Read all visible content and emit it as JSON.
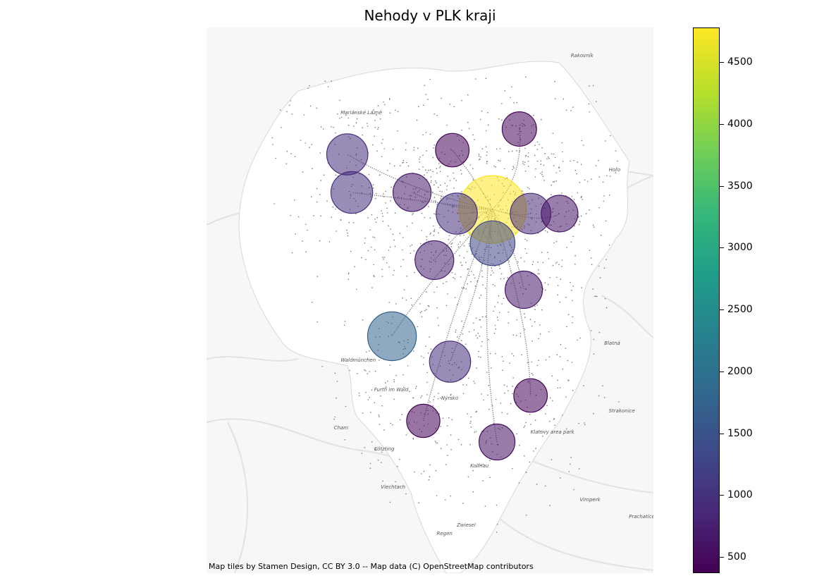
{
  "title": "Nehody v PLK kraji",
  "attribution": "Map tiles by Stamen Design, CC BY 3.0 -- Map data (C) OpenStreetMap contributors",
  "colorbar": {
    "min": 370,
    "max": 4780,
    "ticks": [
      {
        "value": 500,
        "label": "500"
      },
      {
        "value": 1000,
        "label": "1000"
      },
      {
        "value": 1500,
        "label": "1500"
      },
      {
        "value": 2000,
        "label": "2000"
      },
      {
        "value": 2500,
        "label": "2500"
      },
      {
        "value": 3000,
        "label": "3000"
      },
      {
        "value": 3500,
        "label": "3500"
      },
      {
        "value": 4000,
        "label": "4000"
      },
      {
        "value": 4500,
        "label": "4500"
      }
    ],
    "colormap": "viridis"
  },
  "basemap_labels": [
    {
      "text": "Mariánské Lázně",
      "lon": 12.7,
      "lat": 49.965
    },
    {
      "text": "Rakovník",
      "lon": 13.73,
      "lat": 50.1
    },
    {
      "text": "Hořo",
      "lon": 13.9,
      "lat": 49.83
    },
    {
      "text": "Waldmünchen",
      "lon": 12.7,
      "lat": 49.38
    },
    {
      "text": "Furth im Wald",
      "lon": 12.85,
      "lat": 49.31
    },
    {
      "text": "Cham",
      "lon": 12.67,
      "lat": 49.22
    },
    {
      "text": "Kötzting",
      "lon": 12.85,
      "lat": 49.17
    },
    {
      "text": "Viechtach",
      "lon": 12.88,
      "lat": 49.08
    },
    {
      "text": "Zwiesel",
      "lon": 13.22,
      "lat": 48.99
    },
    {
      "text": "Regen",
      "lon": 13.13,
      "lat": 48.97
    },
    {
      "text": "Klatovy area park",
      "lon": 13.55,
      "lat": 49.21
    },
    {
      "text": "Blatná",
      "lon": 13.88,
      "lat": 49.42
    },
    {
      "text": "Strakonice",
      "lon": 13.9,
      "lat": 49.26
    },
    {
      "text": "Vimperk",
      "lon": 13.77,
      "lat": 49.05
    },
    {
      "text": "Prachatice",
      "lon": 13.99,
      "lat": 49.01
    },
    {
      "text": "Kolfnau",
      "lon": 13.28,
      "lat": 49.13
    },
    {
      "text": "Nýrsko",
      "lon": 13.15,
      "lat": 49.29
    }
  ],
  "chart_data": {
    "type": "bubble-map",
    "title": "Nehody v PLK kraji",
    "color_scale": {
      "min": 370,
      "max": 4780,
      "cmap": "viridis"
    },
    "points": [
      {
        "lon": 13.38,
        "lat": 49.74,
        "value": 4780
      },
      {
        "lon": 12.93,
        "lat": 49.44,
        "value": 1750
      },
      {
        "lon": 13.38,
        "lat": 49.66,
        "value": 1300
      },
      {
        "lon": 12.75,
        "lat": 49.78,
        "value": 1000
      },
      {
        "lon": 12.73,
        "lat": 49.87,
        "value": 950
      },
      {
        "lon": 13.22,
        "lat": 49.73,
        "value": 950
      },
      {
        "lon": 13.55,
        "lat": 49.73,
        "value": 900
      },
      {
        "lon": 13.19,
        "lat": 49.38,
        "value": 950
      },
      {
        "lon": 13.02,
        "lat": 49.78,
        "value": 700
      },
      {
        "lon": 13.12,
        "lat": 49.62,
        "value": 750
      },
      {
        "lon": 13.52,
        "lat": 49.55,
        "value": 650
      },
      {
        "lon": 13.68,
        "lat": 49.73,
        "value": 600
      },
      {
        "lon": 13.4,
        "lat": 49.19,
        "value": 550
      },
      {
        "lon": 13.5,
        "lat": 49.93,
        "value": 450
      },
      {
        "lon": 13.2,
        "lat": 49.88,
        "value": 400
      },
      {
        "lon": 13.55,
        "lat": 49.3,
        "value": 400
      },
      {
        "lon": 13.07,
        "lat": 49.24,
        "value": 380
      }
    ]
  }
}
